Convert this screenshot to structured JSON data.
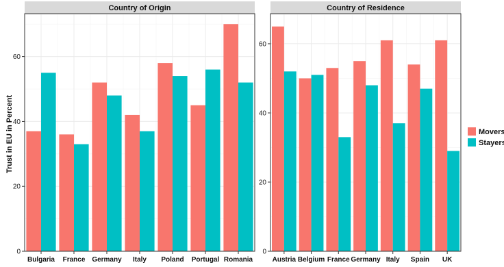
{
  "chart_data": {
    "type": "bar",
    "ylabel": "Trust in EU in Percent",
    "legend": {
      "placement": "right",
      "entries": [
        {
          "name": "Movers",
          "color": "#F8766D"
        },
        {
          "name": "Stayers",
          "color": "#00BFC4"
        }
      ]
    },
    "grid": true,
    "panels": [
      {
        "title": "Country of Origin",
        "categories": [
          "Bulgaria",
          "France",
          "Germany",
          "Italy",
          "Poland",
          "Portugal",
          "Romania"
        ],
        "series": [
          {
            "name": "Movers",
            "values": [
              37,
              36,
              52,
              42,
              58,
              45,
              70
            ]
          },
          {
            "name": "Stayers",
            "values": [
              55,
              33,
              48,
              37,
              54,
              56,
              52
            ]
          }
        ],
        "ylim": [
          0,
          73
        ],
        "yticks": [
          0,
          20,
          40,
          60
        ]
      },
      {
        "title": "Country of Residence",
        "categories": [
          "Austria",
          "Belgium",
          "France",
          "Germany",
          "Italy",
          "Spain",
          "UK"
        ],
        "series": [
          {
            "name": "Movers",
            "values": [
              65,
              50,
              53,
              55,
              61,
              54,
              61
            ]
          },
          {
            "name": "Stayers",
            "values": [
              52,
              51,
              33,
              48,
              37,
              47,
              29
            ]
          }
        ],
        "ylim": [
          0,
          68.5
        ],
        "yticks": [
          0,
          20,
          40,
          60
        ]
      }
    ]
  }
}
